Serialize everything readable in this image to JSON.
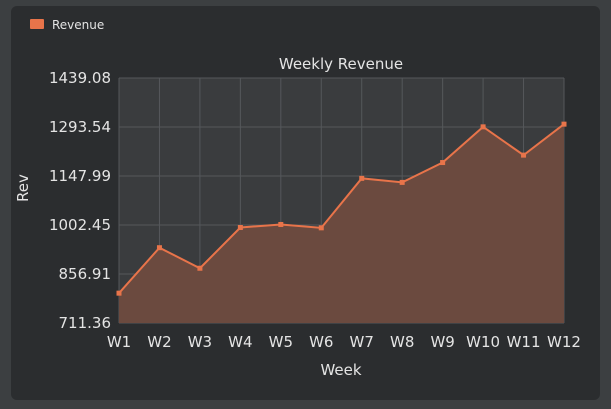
{
  "colors": {
    "accent": "#e8744a",
    "area": "#6b4a3f",
    "plot_bg": "#3a3c3e",
    "grid": "#55585b",
    "text": "#e4e4e4"
  },
  "chart_data": {
    "type": "area",
    "title": "Weekly Revenue",
    "xlabel": "Week",
    "ylabel": "Rev",
    "categories": [
      "W1",
      "W2",
      "W3",
      "W4",
      "W5",
      "W6",
      "W7",
      "W8",
      "W9",
      "W10",
      "W11",
      "W12"
    ],
    "series": [
      {
        "name": "Revenue",
        "values": [
          800,
          935,
          874,
          995,
          1004,
          994,
          1141,
          1129,
          1188,
          1294,
          1210,
          1302
        ]
      }
    ],
    "ylim": [
      711.36,
      1439.08
    ],
    "yticks": [
      "711.36",
      "856.91",
      "1002.45",
      "1147.99",
      "1293.54",
      "1439.08"
    ],
    "grid": true,
    "legend_position": "top-left"
  }
}
